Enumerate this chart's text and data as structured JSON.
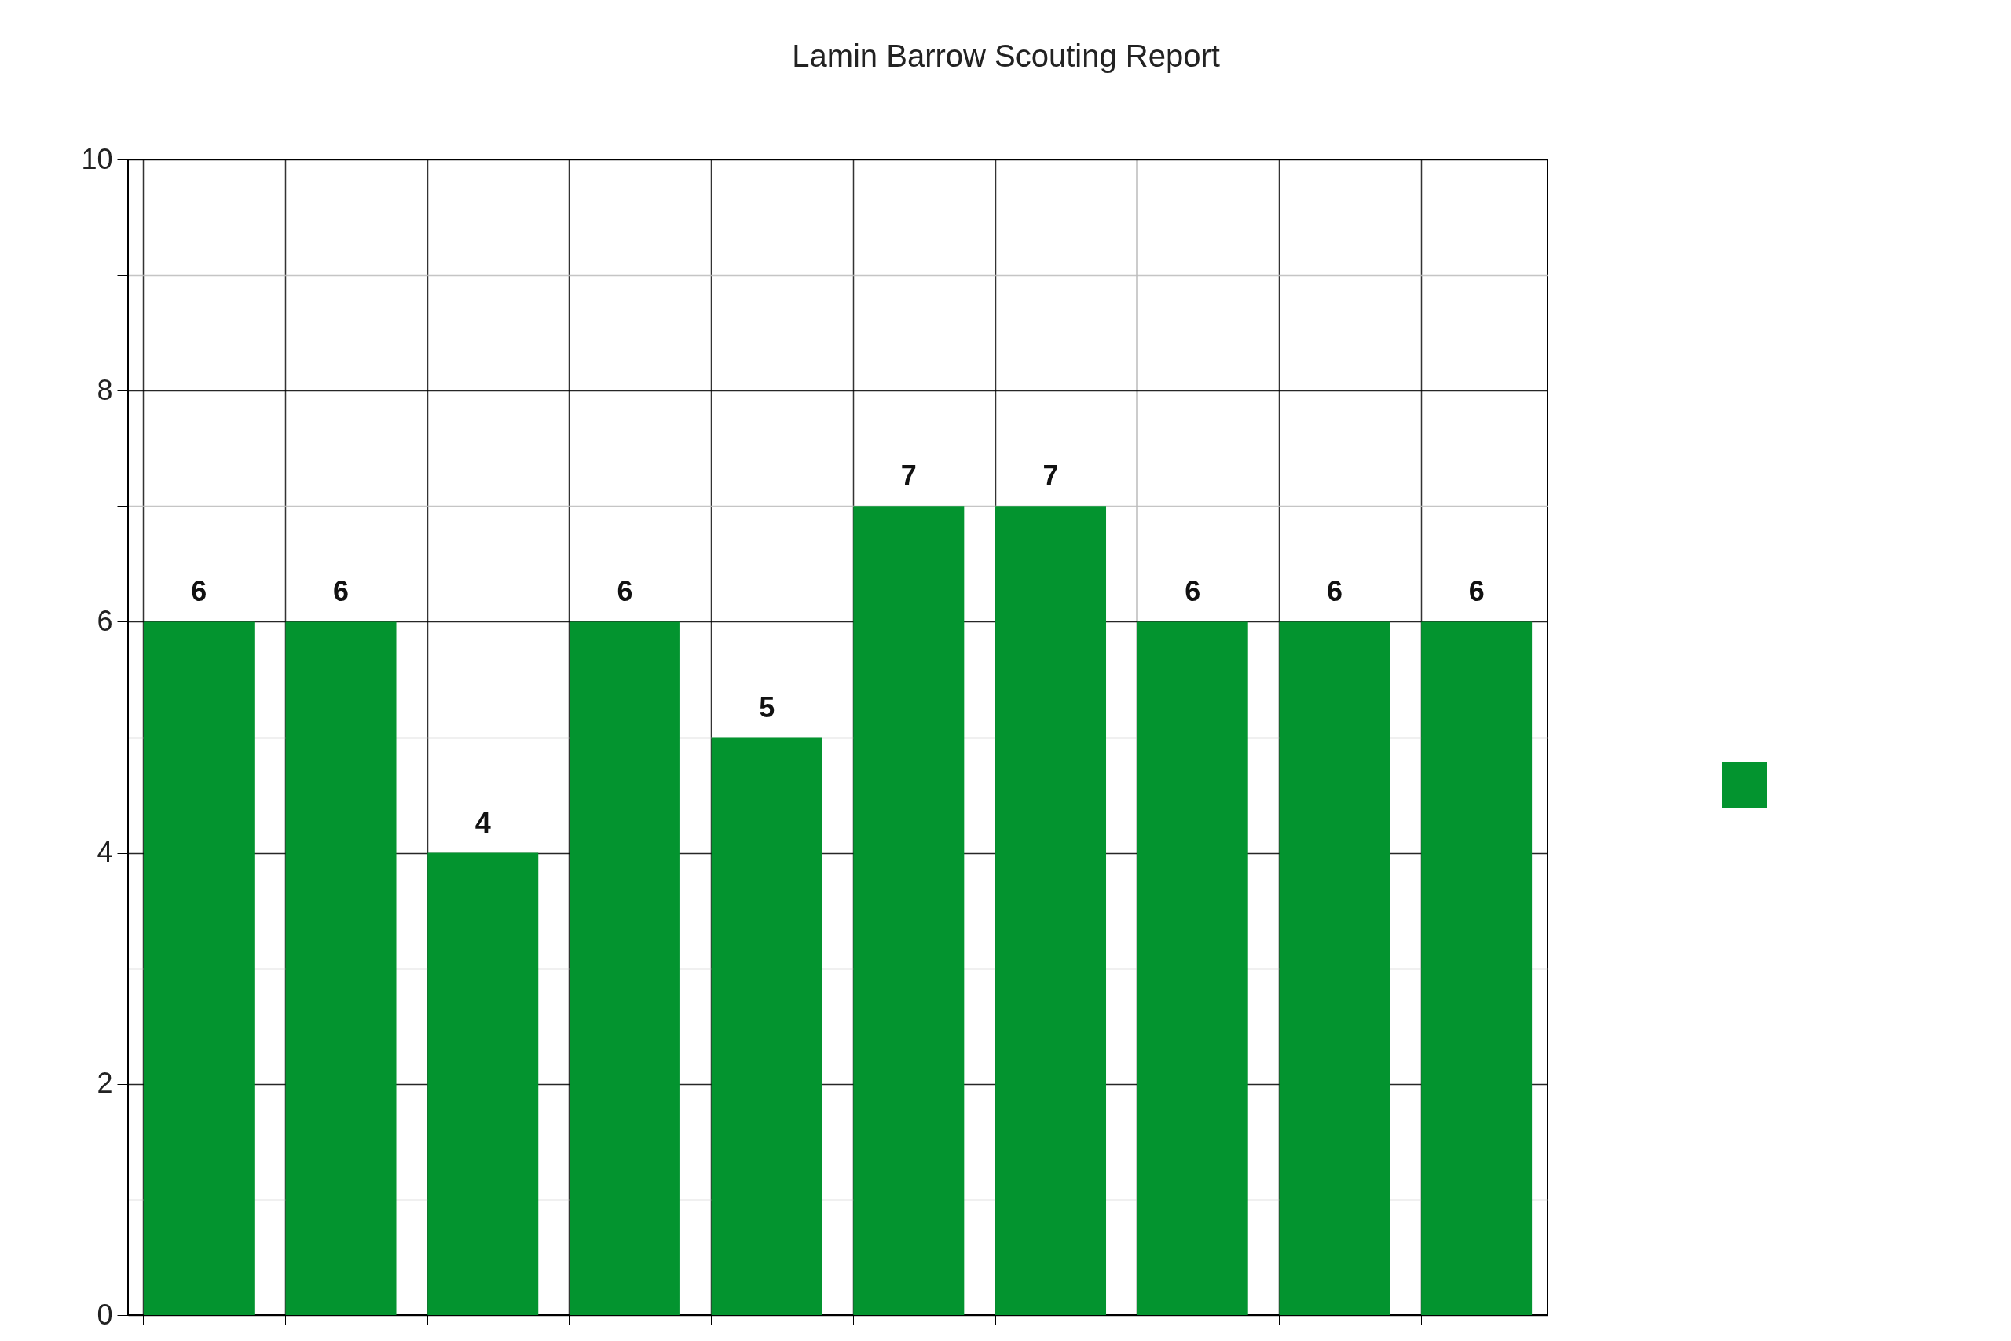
{
  "chart_data": {
    "type": "bar",
    "title": "Lamin Barrow Scouting Report",
    "categories": [
      null,
      null,
      null,
      null,
      null,
      null,
      null,
      null,
      null,
      null
    ],
    "series": [
      {
        "color": "#03942f",
        "values": [
          6,
          6,
          4,
          6,
          5,
          7,
          7,
          6,
          6,
          6
        ]
      }
    ],
    "ylim": [
      0,
      10
    ],
    "yticks": [
      0,
      {
        "value": 1,
        "label": null
      },
      2,
      {
        "value": 3,
        "label": null
      },
      4,
      {
        "value": 5,
        "label": null
      },
      6,
      {
        "value": 7,
        "label": null
      },
      8,
      {
        "value": 9,
        "label": null
      },
      10
    ],
    "grid": true,
    "data_labels": true
  }
}
